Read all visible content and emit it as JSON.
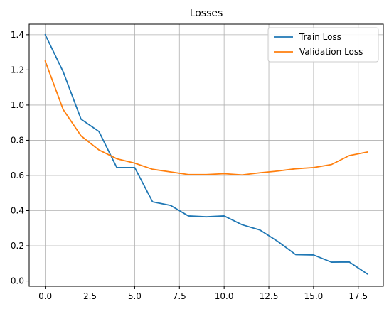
{
  "chart_data": {
    "type": "line",
    "title": "Losses",
    "xlabel": "",
    "ylabel": "",
    "xlim": [
      -0.9,
      18.9
    ],
    "ylim": [
      -0.03,
      1.46
    ],
    "x_ticks": [
      0.0,
      2.5,
      5.0,
      7.5,
      10.0,
      12.5,
      15.0,
      17.5
    ],
    "y_ticks": [
      0.0,
      0.2,
      0.4,
      0.6,
      0.8,
      1.0,
      1.2,
      1.4
    ],
    "grid": true,
    "legend_position": "top-right",
    "x": [
      0,
      1,
      2,
      3,
      4,
      5,
      6,
      7,
      8,
      9,
      10,
      11,
      12,
      13,
      14,
      15,
      16,
      17,
      18
    ],
    "series": [
      {
        "name": "Train Loss",
        "color": "#1f77b4",
        "values": [
          1.4,
          1.19,
          0.92,
          0.85,
          0.645,
          0.645,
          0.45,
          0.43,
          0.37,
          0.365,
          0.37,
          0.32,
          0.29,
          0.225,
          0.15,
          0.148,
          0.107,
          0.108,
          0.04
        ]
      },
      {
        "name": "Validation Loss",
        "color": "#ff7f0e",
        "values": [
          1.25,
          0.975,
          0.825,
          0.745,
          0.695,
          0.67,
          0.635,
          0.62,
          0.605,
          0.605,
          0.61,
          0.603,
          0.615,
          0.625,
          0.638,
          0.645,
          0.662,
          0.713,
          0.733
        ]
      }
    ]
  }
}
